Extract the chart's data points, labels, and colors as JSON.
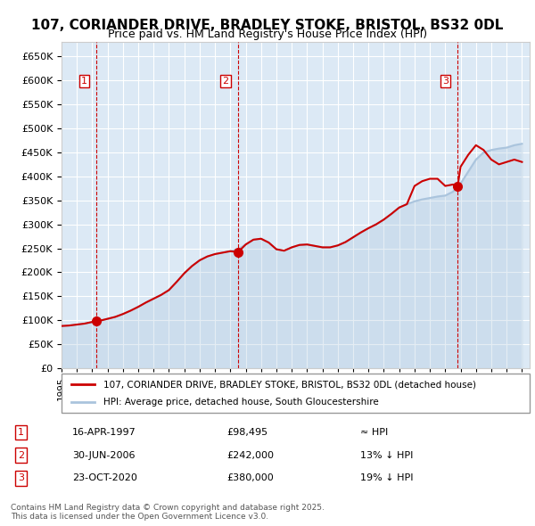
{
  "title": "107, CORIANDER DRIVE, BRADLEY STOKE, BRISTOL, BS32 0DL",
  "subtitle": "Price paid vs. HM Land Registry's House Price Index (HPI)",
  "legend_line1": "107, CORIANDER DRIVE, BRADLEY STOKE, BRISTOL, BS32 0DL (detached house)",
  "legend_line2": "HPI: Average price, detached house, South Gloucestershire",
  "footer": "Contains HM Land Registry data © Crown copyright and database right 2025.\nThis data is licensed under the Open Government Licence v3.0.",
  "transactions": [
    {
      "num": 1,
      "date": "16-APR-1997",
      "price": 98495,
      "rel": "≈ HPI",
      "x": 1997.29
    },
    {
      "num": 2,
      "date": "30-JUN-2006",
      "price": 242000,
      "rel": "13% ↓ HPI",
      "x": 2006.5
    },
    {
      "num": 3,
      "date": "23-OCT-2020",
      "price": 380000,
      "rel": "19% ↓ HPI",
      "x": 2020.81
    }
  ],
  "hpi_color": "#aac4dd",
  "price_color": "#cc0000",
  "dot_color": "#cc0000",
  "vline_color": "#cc0000",
  "background_color": "#dce9f5",
  "plot_bg_color": "#dce9f5",
  "ylim": [
    0,
    680000
  ],
  "xlim_start": 1995,
  "xlim_end": 2025.5,
  "ytick_step": 50000,
  "hpi_data": {
    "years": [
      1995,
      1995.5,
      1996,
      1996.5,
      1997,
      1997.5,
      1998,
      1998.5,
      1999,
      1999.5,
      2000,
      2000.5,
      2001,
      2001.5,
      2002,
      2002.5,
      2003,
      2003.5,
      2004,
      2004.5,
      2005,
      2005.5,
      2006,
      2006.5,
      2007,
      2007.5,
      2008,
      2008.5,
      2009,
      2009.5,
      2010,
      2010.5,
      2011,
      2011.5,
      2012,
      2012.5,
      2013,
      2013.5,
      2014,
      2014.5,
      2015,
      2015.5,
      2016,
      2016.5,
      2017,
      2017.5,
      2018,
      2018.5,
      2019,
      2019.5,
      2020,
      2020.5,
      2021,
      2021.5,
      2022,
      2022.5,
      2023,
      2023.5,
      2024,
      2024.5,
      2025
    ],
    "values": [
      88000,
      89000,
      91000,
      93000,
      96000,
      99000,
      103000,
      107000,
      113000,
      120000,
      128000,
      137000,
      145000,
      153000,
      163000,
      180000,
      198000,
      213000,
      225000,
      233000,
      238000,
      241000,
      244000,
      248000,
      258000,
      268000,
      270000,
      262000,
      248000,
      245000,
      252000,
      257000,
      258000,
      255000,
      252000,
      252000,
      256000,
      263000,
      273000,
      283000,
      292000,
      300000,
      310000,
      322000,
      335000,
      342000,
      348000,
      352000,
      355000,
      358000,
      360000,
      368000,
      385000,
      410000,
      435000,
      450000,
      455000,
      458000,
      460000,
      465000,
      468000
    ]
  },
  "price_line_data": {
    "years": [
      1995,
      1995.5,
      1996,
      1996.5,
      1997.29,
      1997.5,
      1998,
      1998.5,
      1999,
      1999.5,
      2000,
      2000.5,
      2001,
      2001.5,
      2002,
      2002.5,
      2003,
      2003.5,
      2004,
      2004.5,
      2005,
      2005.5,
      2006,
      2006.5,
      2007,
      2007.5,
      2008,
      2008.5,
      2009,
      2009.5,
      2010,
      2010.5,
      2011,
      2011.5,
      2012,
      2012.5,
      2013,
      2013.5,
      2014,
      2014.5,
      2015,
      2015.5,
      2016,
      2016.5,
      2017,
      2017.5,
      2018,
      2018.5,
      2019,
      2019.5,
      2020,
      2020.5,
      2020.81,
      2021,
      2021.5,
      2022,
      2022.5,
      2023,
      2023.5,
      2024,
      2024.5,
      2025
    ],
    "values": [
      88000,
      89000,
      91000,
      93000,
      98495,
      99000,
      103000,
      107000,
      113000,
      120000,
      128000,
      137000,
      145000,
      153000,
      163000,
      180000,
      198000,
      213000,
      225000,
      233000,
      238000,
      241000,
      244000,
      242000,
      258000,
      268000,
      270000,
      262000,
      248000,
      245000,
      252000,
      257000,
      258000,
      255000,
      252000,
      252000,
      256000,
      263000,
      273000,
      283000,
      292000,
      300000,
      310000,
      322000,
      335000,
      342000,
      380000,
      390000,
      395000,
      395000,
      380000,
      383000,
      380000,
      420000,
      445000,
      465000,
      455000,
      435000,
      425000,
      430000,
      435000,
      430000
    ]
  }
}
